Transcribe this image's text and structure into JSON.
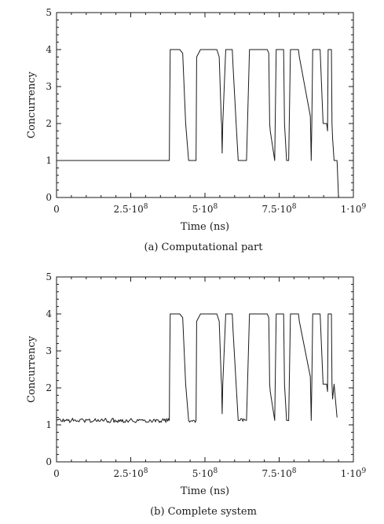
{
  "chart_data": [
    {
      "type": "line",
      "caption": "(a) Computational part",
      "xlabel": "Time (ns)",
      "ylabel": "Concurrency",
      "xlim": [
        0,
        1000000000
      ],
      "ylim": [
        0,
        5
      ],
      "xticks": [
        {
          "value": 0,
          "mantissa": "0",
          "exp": ""
        },
        {
          "value": 250000000,
          "mantissa": "2.5·10",
          "exp": "8"
        },
        {
          "value": 500000000,
          "mantissa": "5·10",
          "exp": "8"
        },
        {
          "value": 750000000,
          "mantissa": "7.5·10",
          "exp": "8"
        },
        {
          "value": 1000000000,
          "mantissa": "1·10",
          "exp": "9"
        }
      ],
      "yticks": [
        0,
        1,
        2,
        3,
        4,
        5
      ],
      "grid": false,
      "noise": false,
      "series": [
        {
          "x": [
            0,
            380000000,
            381000000,
            383000000,
            385000000,
            415000000,
            425000000,
            435000000,
            445000000,
            470000000,
            472000000,
            485000000,
            540000000,
            548000000,
            555000000,
            556000000,
            558000000,
            560000000,
            570000000,
            592000000,
            595000000,
            605000000,
            612000000,
            618000000,
            640000000,
            650000000,
            710000000,
            715000000,
            718000000,
            720000000,
            735000000,
            740000000,
            765000000,
            768000000,
            775000000,
            782000000,
            788000000,
            800000000,
            815000000,
            818000000,
            855000000,
            858000000,
            860000000,
            863000000,
            865000000,
            888000000,
            898000000,
            910000000,
            913000000,
            915000000,
            926000000,
            928000000,
            930000000,
            935000000,
            945000000,
            950000000
          ],
          "y": [
            1,
            1,
            2.3,
            4,
            4,
            4,
            3.9,
            2,
            1,
            1,
            3.8,
            4,
            4,
            3.8,
            2.1,
            2,
            1.2,
            2,
            4,
            4,
            3.5,
            2,
            1,
            1,
            1,
            4,
            4,
            3.9,
            2,
            1.8,
            1,
            4,
            4,
            2,
            1,
            1,
            4,
            4,
            4,
            3.8,
            2.2,
            1,
            2,
            4,
            4,
            4,
            2,
            2,
            1.8,
            4,
            4,
            2,
            1.6,
            1,
            1,
            0
          ]
        }
      ]
    },
    {
      "type": "line",
      "caption": "(b) Complete system",
      "xlabel": "Time (ns)",
      "ylabel": "Concurrency",
      "xlim": [
        0,
        1000000000
      ],
      "ylim": [
        0,
        5
      ],
      "xticks": [
        {
          "value": 0,
          "mantissa": "0",
          "exp": ""
        },
        {
          "value": 250000000,
          "mantissa": "2.5·10",
          "exp": "8"
        },
        {
          "value": 500000000,
          "mantissa": "5·10",
          "exp": "8"
        },
        {
          "value": 750000000,
          "mantissa": "7.5·10",
          "exp": "8"
        },
        {
          "value": 1000000000,
          "mantissa": "1·10",
          "exp": "9"
        }
      ],
      "yticks": [
        0,
        1,
        2,
        3,
        4,
        5
      ],
      "grid": false,
      "noise": true,
      "series": [
        {
          "x": [
            0,
            380000000,
            381000000,
            383000000,
            385000000,
            415000000,
            425000000,
            435000000,
            445000000,
            470000000,
            472000000,
            485000000,
            540000000,
            548000000,
            555000000,
            556000000,
            558000000,
            560000000,
            570000000,
            592000000,
            595000000,
            605000000,
            612000000,
            618000000,
            640000000,
            650000000,
            710000000,
            715000000,
            718000000,
            720000000,
            735000000,
            740000000,
            765000000,
            768000000,
            775000000,
            782000000,
            788000000,
            800000000,
            815000000,
            818000000,
            855000000,
            858000000,
            860000000,
            863000000,
            865000000,
            888000000,
            898000000,
            910000000,
            913000000,
            915000000,
            926000000,
            928000000,
            930000000,
            935000000,
            945000000
          ],
          "y": [
            1.12,
            1.12,
            2.5,
            4,
            4,
            4,
            3.9,
            2.1,
            1.12,
            1.12,
            3.8,
            4,
            4,
            3.8,
            2.2,
            2.1,
            1.3,
            2.1,
            4,
            4,
            3.5,
            2.1,
            1.12,
            1.12,
            1.12,
            4,
            4,
            3.9,
            2.1,
            1.9,
            1.12,
            4,
            4,
            2.1,
            1.12,
            1.12,
            4,
            4,
            4,
            3.8,
            2.3,
            1.12,
            2.1,
            4,
            4,
            4,
            2.1,
            2.1,
            1.9,
            4,
            4,
            2.1,
            1.7,
            2.1,
            1.2
          ]
        }
      ]
    }
  ]
}
